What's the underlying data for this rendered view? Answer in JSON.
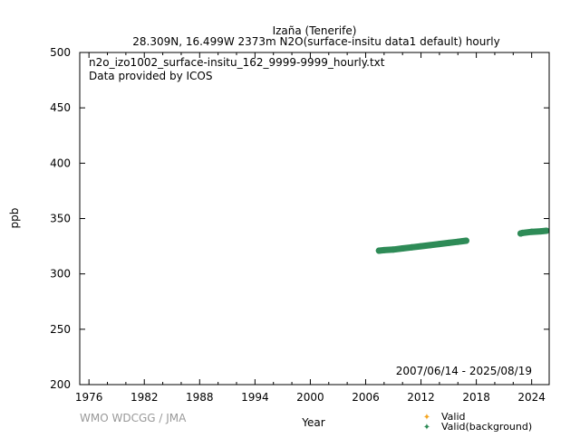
{
  "chart_data": {
    "type": "scatter",
    "title": "Izaña (Tenerife)",
    "subtitle": "28.309N, 16.499W 2373m    N2O(surface-insitu data1 default) hourly",
    "annotations": [
      "n2o_izo1002_surface-insitu_162_9999-9999_hourly.txt",
      "Data provided by ICOS"
    ],
    "date_range": "2007/06/14 - 2025/08/19",
    "xlabel": "Year",
    "ylabel": "ppb",
    "xlim": [
      1975.0,
      2025.9
    ],
    "ylim": [
      200,
      500
    ],
    "xticks": [
      1976,
      1982,
      1988,
      1994,
      2000,
      2006,
      2012,
      2018,
      2024
    ],
    "yticks": [
      200,
      250,
      300,
      350,
      400,
      450,
      500
    ],
    "grid": false,
    "legend_position": "bottom-right",
    "series": [
      {
        "name": "Valid",
        "color": "#f5a623",
        "x": [],
        "y": []
      },
      {
        "name": "Valid(background)",
        "color": "#2e8b57",
        "x": [
          2007.45,
          2008,
          2009,
          2010,
          2011,
          2012,
          2013,
          2014,
          2015,
          2016,
          2016.9,
          2022.8,
          2023,
          2024,
          2025,
          2025.6
        ],
        "y": [
          321,
          321.5,
          322,
          323,
          324,
          325,
          326,
          327,
          328,
          329,
          330,
          336.5,
          337,
          338,
          338.5,
          339
        ]
      }
    ]
  },
  "footer": {
    "credit": "WMO WDCGG / JMA"
  }
}
